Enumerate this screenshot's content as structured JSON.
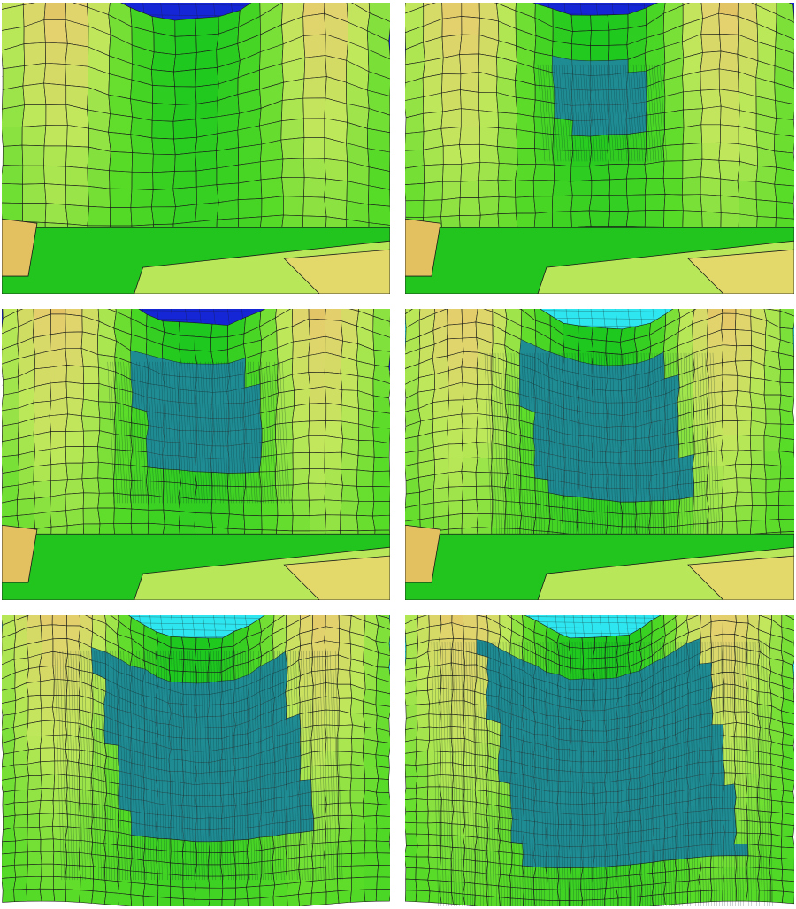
{
  "figure": {
    "panels": [
      {
        "id": "panel-a",
        "refinement": 0,
        "has_water_grid_dark": true
      },
      {
        "id": "panel-b",
        "refinement": 1,
        "has_water_grid_dark": true
      },
      {
        "id": "panel-c",
        "refinement": 2,
        "has_water_grid_dark": true
      },
      {
        "id": "panel-d",
        "refinement": 3,
        "has_water_grid_dark": false
      },
      {
        "id": "panel-e",
        "refinement": 4,
        "has_water_grid_dark": false
      },
      {
        "id": "panel-f",
        "refinement": 5,
        "has_water_grid_dark": false
      }
    ]
  },
  "colors": {
    "deep_blue": "#1426d6",
    "cyan": "#2ee6f0",
    "teal_mesh": "#1f8c94",
    "green_bright": "#22e01e",
    "green_mid": "#55d61f",
    "lime": "#b8e85a",
    "yellow": "#e3d86a",
    "orange": "#e0a048",
    "orange_dark": "#d98a3a",
    "grid_line": "#1a1a1a"
  }
}
